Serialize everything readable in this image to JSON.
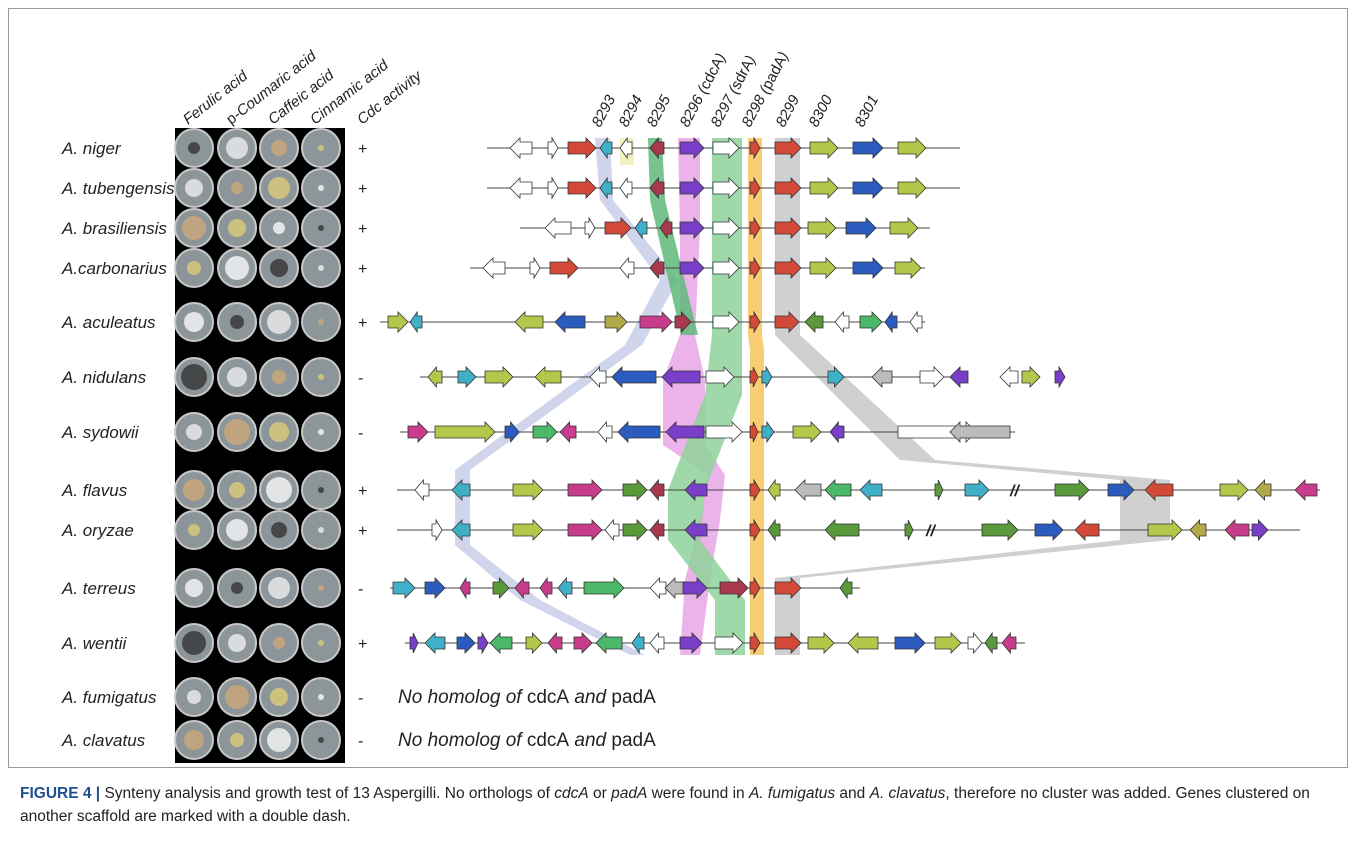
{
  "figure": {
    "column_headers": [
      {
        "parts": [
          "Ferulic acid"
        ]
      },
      {
        "parts": [
          "",
          "p",
          "-Coumaric acid"
        ]
      },
      {
        "parts": [
          "Caffeic acid"
        ]
      },
      {
        "parts": [
          "Cinnamic acid"
        ]
      },
      {
        "parts": [
          "Cdc activity"
        ]
      }
    ],
    "gene_labels": [
      {
        "parts": [
          "8293"
        ]
      },
      {
        "parts": [
          "8294"
        ]
      },
      {
        "parts": [
          "8295"
        ]
      },
      {
        "parts": [
          "8296 (",
          "cdcA",
          ")"
        ]
      },
      {
        "parts": [
          "8297 (",
          "sdrA",
          ")"
        ]
      },
      {
        "parts": [
          "8298 (",
          "padA",
          ")"
        ]
      },
      {
        "parts": [
          "8299"
        ]
      },
      {
        "parts": [
          "8300"
        ]
      },
      {
        "parts": [
          "8301"
        ]
      }
    ],
    "species": [
      {
        "name": "A. niger",
        "cdc": "+"
      },
      {
        "name": "A. tubengensis",
        "cdc": "+"
      },
      {
        "name": "A. brasiliensis",
        "cdc": "+"
      },
      {
        "name": "A.carbonarius",
        "cdc": "+"
      },
      {
        "name": "A. aculeatus",
        "cdc": "+"
      },
      {
        "name": "A. nidulans",
        "cdc": "-"
      },
      {
        "name": "A. sydowii",
        "cdc": "-"
      },
      {
        "name": "A. flavus",
        "cdc": "+",
        "scaffold_break": "//"
      },
      {
        "name": "A. oryzae",
        "cdc": "+",
        "scaffold_break": "//"
      },
      {
        "name": "A. terreus",
        "cdc": "-"
      },
      {
        "name": "A. wentii",
        "cdc": "+"
      },
      {
        "name": "A. fumigatus",
        "cdc": "-",
        "note": {
          "parts": [
            "No homolog of ",
            "cdcA",
            " and ",
            "padA"
          ]
        }
      },
      {
        "name": "A. clavatus",
        "cdc": "-",
        "note": {
          "parts": [
            "No homolog of ",
            "cdcA",
            " and ",
            "padA"
          ]
        }
      }
    ],
    "caption": {
      "label": "FIGURE 4 |",
      "parts": [
        "Synteny analysis and growth test of 13 Aspergilli. No orthologs of ",
        "cdcA",
        " or ",
        "padA",
        " were found in ",
        "A. fumigatus",
        " and ",
        "A. clavatus",
        ", therefore no cluster was added. Genes clustered on another scaffold are marked with a double dash."
      ]
    }
  }
}
